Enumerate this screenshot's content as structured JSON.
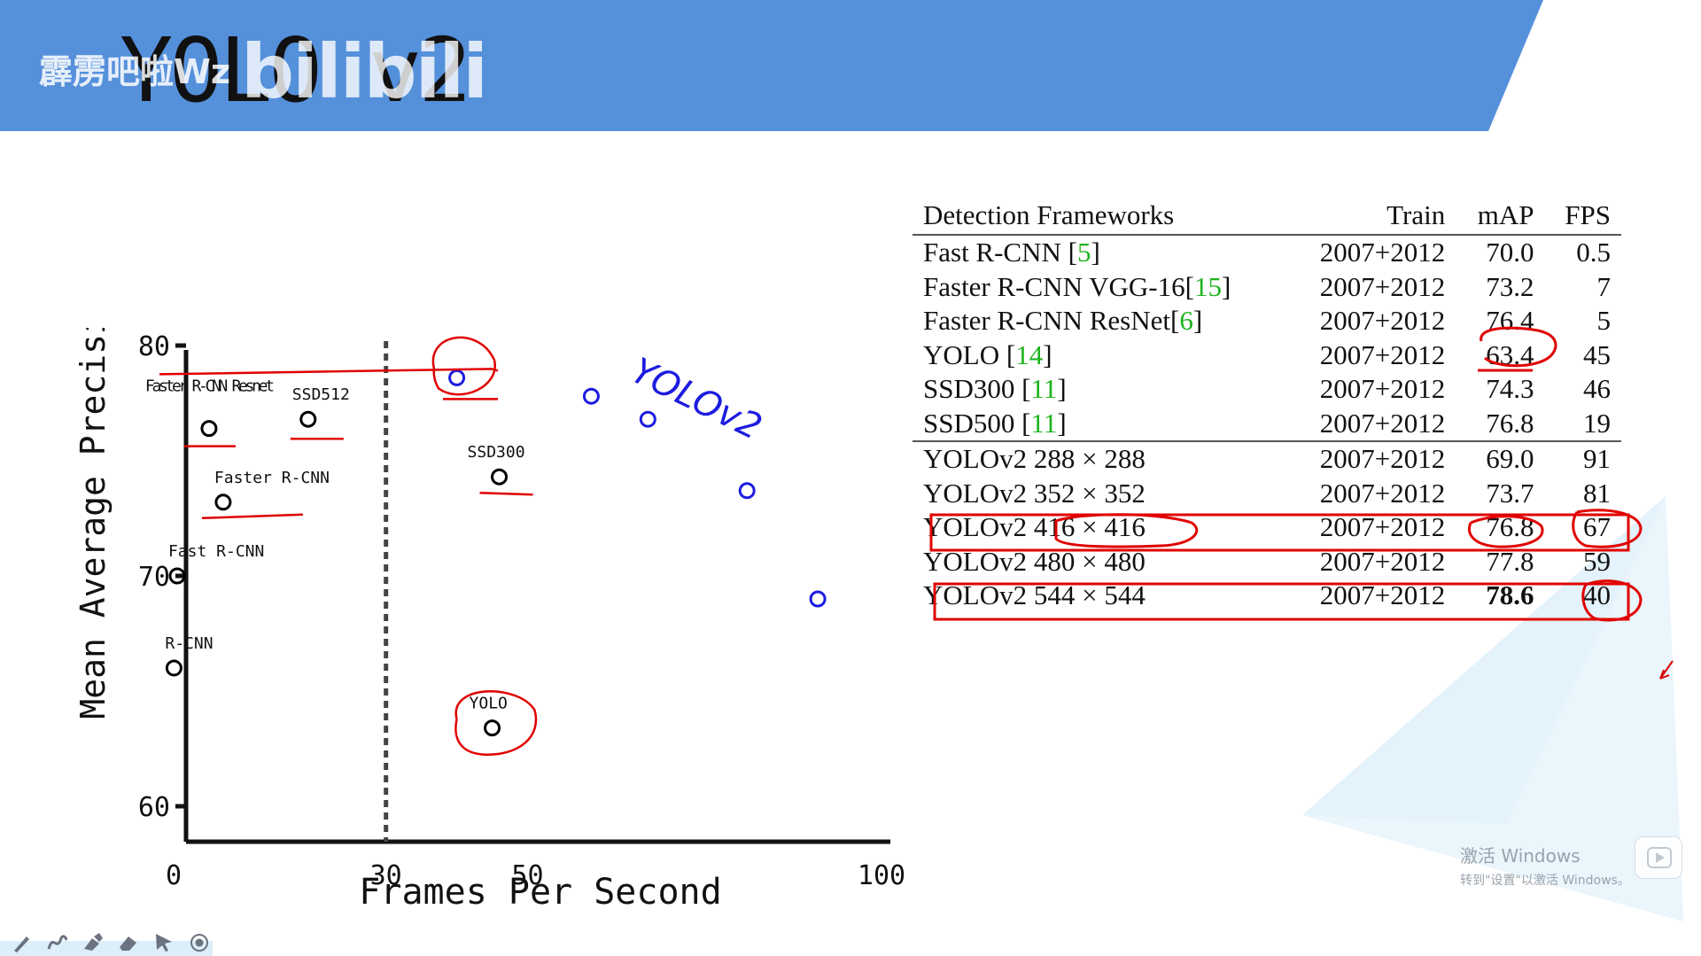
{
  "slide": {
    "title": "YOLO v2",
    "watermark_author": "霹雳吧啦Wz",
    "watermark_logo": "bilibili",
    "banner_color": "#5590db"
  },
  "chart_data": {
    "type": "scatter",
    "xlabel": "Frames Per Second",
    "ylabel": "Mean Average Precision",
    "xlim": [
      -2,
      100
    ],
    "ylim": [
      60,
      80
    ],
    "xticks": [
      0,
      30,
      50,
      100
    ],
    "yticks": [
      60,
      70,
      80
    ],
    "realtime_threshold_x": 30,
    "series": [
      {
        "color": "#000000",
        "points": [
          {
            "label": "R-CNN",
            "x": 0.05,
            "y": 66
          },
          {
            "label": "Fast R-CNN",
            "x": 0.5,
            "y": 70
          },
          {
            "label": "Faster R-CNN",
            "x": 7,
            "y": 73.2
          },
          {
            "label": "Faster R-CNN Resnet",
            "x": 5,
            "y": 76.4
          },
          {
            "label": "SSD512",
            "x": 19,
            "y": 76.8
          },
          {
            "label": "SSD300",
            "x": 46,
            "y": 74.3
          },
          {
            "label": "YOLO",
            "x": 45,
            "y": 63.4
          }
        ]
      },
      {
        "color": "#1c1ce0",
        "points": [
          {
            "x": 40,
            "y": 78.6
          },
          {
            "x": 59,
            "y": 77.8
          },
          {
            "x": 67,
            "y": 76.8
          },
          {
            "x": 81,
            "y": 73.7
          },
          {
            "x": 91,
            "y": 69.0
          }
        ]
      }
    ],
    "annotation": "YOLOv2"
  },
  "table": {
    "headers": [
      "Detection Frameworks",
      "Train",
      "mAP",
      "FPS"
    ],
    "rows": [
      {
        "name": "Fast R-CNN ",
        "cite": "[5]",
        "train": "2007+2012",
        "map": "70.0",
        "fps": "0.5"
      },
      {
        "name": "Faster R-CNN VGG-16",
        "cite": "[15]",
        "train": "2007+2012",
        "map": "73.2",
        "fps": "7"
      },
      {
        "name": "Faster R-CNN ResNet",
        "cite": "[6]",
        "train": "2007+2012",
        "map": "76.4",
        "fps": "5"
      },
      {
        "name": "YOLO ",
        "cite": "[14]",
        "train": "2007+2012",
        "map": "63.4",
        "fps": "45"
      },
      {
        "name": "SSD300 ",
        "cite": "[11]",
        "train": "2007+2012",
        "map": "74.3",
        "fps": "46"
      },
      {
        "name": "SSD500 ",
        "cite": "[11]",
        "train": "2007+2012",
        "map": "76.8",
        "fps": "19"
      },
      {
        "name": "YOLOv2 288 × 288",
        "cite": "",
        "train": "2007+2012",
        "map": "69.0",
        "fps": "91"
      },
      {
        "name": "YOLOv2 352 × 352",
        "cite": "",
        "train": "2007+2012",
        "map": "73.7",
        "fps": "81"
      },
      {
        "name": "YOLOv2 416 × 416",
        "cite": "",
        "train": "2007+2012",
        "map": "76.8",
        "fps": "67"
      },
      {
        "name": "YOLOv2 480 × 480",
        "cite": "",
        "train": "2007+2012",
        "map": "77.8",
        "fps": "59"
      },
      {
        "name": "YOLOv2 544 × 544",
        "cite": "",
        "train": "2007+2012",
        "map": "78.6",
        "fps": "40"
      }
    ]
  },
  "activation": {
    "line1": "激活 Windows",
    "line2": "转到\"设置\"以激活 Windows。"
  },
  "toolbar": {
    "icons": [
      "pen-icon",
      "curve-icon",
      "highlighter-icon",
      "eraser-icon",
      "pointer-icon",
      "record-icon"
    ]
  },
  "annotation_color": "#e00000"
}
